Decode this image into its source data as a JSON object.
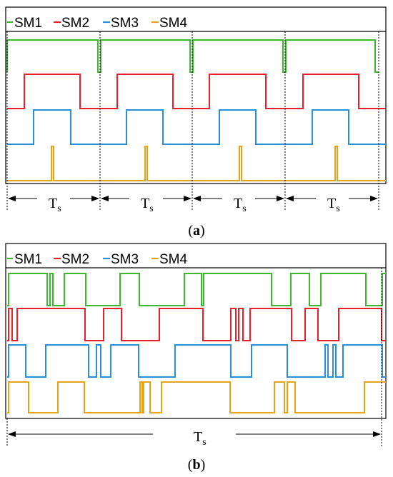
{
  "colors": {
    "SM1": "#3cb82e",
    "SM2": "#e8202c",
    "SM3": "#2b8fd8",
    "SM4": "#e5a417"
  },
  "panels": [
    {
      "id": "a",
      "caption": "a",
      "legend": [
        "SM1",
        "SM2",
        "SM3",
        "SM4"
      ],
      "period_label": "T",
      "period_subscript": "s",
      "period_count": 4
    },
    {
      "id": "b",
      "caption": "b",
      "legend": [
        "SM1",
        "SM2",
        "SM3",
        "SM4"
      ],
      "period_label": "T",
      "period_subscript": "s",
      "period_count": 1
    }
  ]
}
